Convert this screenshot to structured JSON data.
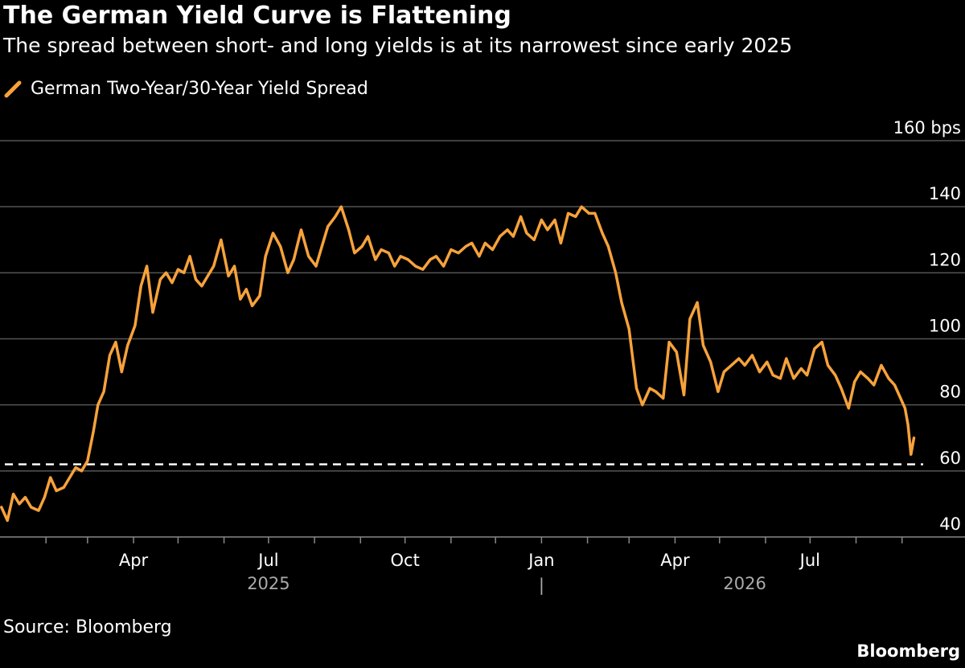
{
  "header": {
    "title": "The German Yield Curve is Flattening",
    "subtitle": "The spread between short- and long yields is at its narrowest since early 2025"
  },
  "legend": {
    "label": "German Two-Year/30-Year Yield Spread",
    "placement": "top-left"
  },
  "footer": {
    "source": "Source: Bloomberg",
    "brand": "Bloomberg"
  },
  "colors": {
    "background": "#000000",
    "series": "#F7A23B",
    "grid": "#555555",
    "reference_line": "#FFFFFF"
  },
  "chart_data": {
    "type": "line",
    "title": "The German Yield Curve is Flattening",
    "subtitle": "The spread between short- and long yields is at its narrowest since early 2025",
    "xlabel": "",
    "ylabel": "",
    "y_unit": "bps",
    "ylim": [
      40,
      160
    ],
    "yticks": [
      40,
      60,
      80,
      100,
      120,
      140,
      160
    ],
    "ytick_labels": [
      "40",
      "60",
      "80",
      "100",
      "120",
      "140",
      "160 bps"
    ],
    "xlim": [
      "2025-01-01",
      "2026-09-12"
    ],
    "x_month_ticks": [
      "2025-02-01",
      "2025-03-01",
      "2025-04-01",
      "2025-05-01",
      "2025-06-01",
      "2025-07-01",
      "2025-08-01",
      "2025-09-01",
      "2025-10-01",
      "2025-11-01",
      "2025-12-01",
      "2026-01-01",
      "2026-02-01",
      "2026-03-01",
      "2026-04-01",
      "2026-05-01",
      "2026-06-01",
      "2026-07-01",
      "2026-08-01",
      "2026-09-01"
    ],
    "x_tick_labels": [
      {
        "date": "2025-04-01",
        "label": "Apr"
      },
      {
        "date": "2025-07-01",
        "label": "Jul"
      },
      {
        "date": "2025-10-01",
        "label": "Oct"
      },
      {
        "date": "2026-01-01",
        "label": "Jan"
      },
      {
        "date": "2026-04-01",
        "label": "Apr"
      },
      {
        "date": "2026-07-01",
        "label": "Jul"
      }
    ],
    "year_labels": [
      {
        "label": "2025",
        "date": "2025-07-01"
      },
      {
        "label": "2026",
        "date": "2026-05-18"
      }
    ],
    "year_separator": {
      "label": "|",
      "date": "2026-01-01"
    },
    "grid": true,
    "reference_line": {
      "y": 62,
      "style": "dashed"
    },
    "series": [
      {
        "name": "German Two-Year/30-Year Yield Spread",
        "color": "#F7A23B",
        "x": [
          "2025-01-02",
          "2025-01-06",
          "2025-01-10",
          "2025-01-14",
          "2025-01-18",
          "2025-01-22",
          "2025-01-27",
          "2025-01-31",
          "2025-02-04",
          "2025-02-08",
          "2025-02-13",
          "2025-02-17",
          "2025-02-21",
          "2025-02-25",
          "2025-03-01",
          "2025-03-05",
          "2025-03-08",
          "2025-03-12",
          "2025-03-16",
          "2025-03-20",
          "2025-03-24",
          "2025-03-28",
          "2025-04-02",
          "2025-04-06",
          "2025-04-10",
          "2025-04-14",
          "2025-04-19",
          "2025-04-23",
          "2025-04-27",
          "2025-05-01",
          "2025-05-05",
          "2025-05-09",
          "2025-05-13",
          "2025-05-17",
          "2025-05-21",
          "2025-05-25",
          "2025-05-30",
          "2025-06-04",
          "2025-06-08",
          "2025-06-12",
          "2025-06-16",
          "2025-06-20",
          "2025-06-25",
          "2025-06-29",
          "2025-07-04",
          "2025-07-09",
          "2025-07-14",
          "2025-07-18",
          "2025-07-23",
          "2025-07-28",
          "2025-08-02",
          "2025-08-06",
          "2025-08-10",
          "2025-08-15",
          "2025-08-19",
          "2025-08-24",
          "2025-08-28",
          "2025-09-02",
          "2025-09-06",
          "2025-09-11",
          "2025-09-15",
          "2025-09-20",
          "2025-09-24",
          "2025-09-28",
          "2025-10-03",
          "2025-10-08",
          "2025-10-13",
          "2025-10-18",
          "2025-10-22",
          "2025-10-27",
          "2025-11-01",
          "2025-11-06",
          "2025-11-11",
          "2025-11-15",
          "2025-11-20",
          "2025-11-24",
          "2025-11-29",
          "2025-12-04",
          "2025-12-09",
          "2025-12-13",
          "2025-12-18",
          "2025-12-22",
          "2025-12-27",
          "2026-01-01",
          "2026-01-05",
          "2026-01-10",
          "2026-01-14",
          "2026-01-19",
          "2026-01-24",
          "2026-01-28",
          "2026-02-02",
          "2026-02-06",
          "2026-02-11",
          "2026-02-15",
          "2026-02-20",
          "2026-02-24",
          "2026-03-01",
          "2026-03-06",
          "2026-03-10",
          "2026-03-15",
          "2026-03-19",
          "2026-03-24",
          "2026-03-28",
          "2026-04-02",
          "2026-04-07",
          "2026-04-11",
          "2026-04-16",
          "2026-04-20",
          "2026-04-25",
          "2026-04-30",
          "2026-05-04",
          "2026-05-09",
          "2026-05-14",
          "2026-05-18",
          "2026-05-23",
          "2026-05-28",
          "2026-06-02",
          "2026-06-06",
          "2026-06-11",
          "2026-06-15",
          "2026-06-20",
          "2026-06-25",
          "2026-06-29",
          "2026-07-04",
          "2026-07-09",
          "2026-07-13",
          "2026-07-18",
          "2026-07-22",
          "2026-07-27",
          "2026-07-31",
          "2026-08-04",
          "2026-08-09",
          "2026-08-13",
          "2026-08-18",
          "2026-08-23",
          "2026-08-27",
          "2026-08-31",
          "2026-09-03",
          "2026-09-05",
          "2026-09-07",
          "2026-09-09"
        ],
        "y": [
          49,
          45,
          53,
          50,
          52,
          49,
          48,
          52,
          58,
          54,
          55,
          58,
          61,
          60,
          63,
          72,
          80,
          84,
          95,
          99,
          90,
          98,
          104,
          116,
          122,
          108,
          118,
          120,
          117,
          121,
          120,
          125,
          118,
          116,
          119,
          122,
          130,
          119,
          122,
          112,
          115,
          110,
          113,
          125,
          132,
          128,
          120,
          124,
          133,
          125,
          122,
          128,
          134,
          137,
          140,
          133,
          126,
          128,
          131,
          124,
          127,
          126,
          122,
          125,
          124,
          122,
          121,
          124,
          125,
          122,
          127,
          126,
          128,
          129,
          125,
          129,
          127,
          131,
          133,
          131,
          137,
          132,
          130,
          136,
          133,
          136,
          129,
          138,
          137,
          140,
          138,
          138,
          132,
          128,
          120,
          111,
          103,
          85,
          80,
          85,
          84,
          82,
          99,
          96,
          83,
          106,
          111,
          98,
          93,
          84,
          90,
          92,
          94,
          92,
          95,
          90,
          93,
          89,
          88,
          94,
          88,
          91,
          89,
          97,
          99,
          92,
          89,
          85,
          79,
          87,
          90,
          88,
          86,
          92,
          88,
          86,
          82,
          79,
          74,
          65,
          70
        ],
        "note_min_label": ""
      }
    ]
  }
}
